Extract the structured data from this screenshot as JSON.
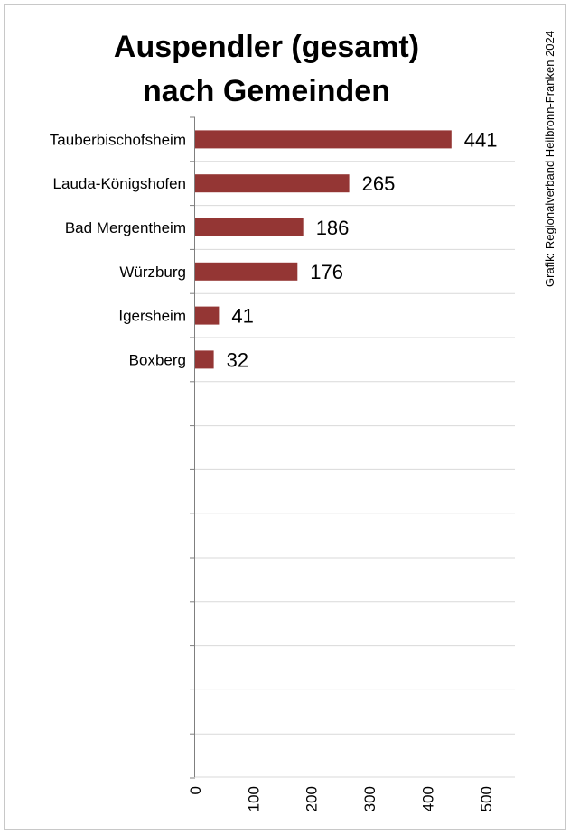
{
  "credit": "Grafik: Regionalverband Heilbronn-Franken 2024",
  "chart_data": {
    "type": "bar",
    "orientation": "horizontal",
    "title_lines": [
      "Auspendler (gesamt)",
      "nach Gemeinden"
    ],
    "categories": [
      "Tauberbischofsheim",
      "Lauda-Königshofen",
      "Bad Mergentheim",
      "Würzburg",
      "Igersheim",
      "Boxberg"
    ],
    "values": [
      441,
      265,
      186,
      176,
      41,
      32
    ],
    "data_labels": [
      "441",
      "265",
      "186",
      "176",
      "41",
      "32"
    ],
    "xlim": [
      0,
      550
    ],
    "xticks": [
      "0",
      "100",
      "200",
      "300",
      "400",
      "500"
    ],
    "grid": true,
    "legend": "none",
    "bar_color": "#943634"
  }
}
